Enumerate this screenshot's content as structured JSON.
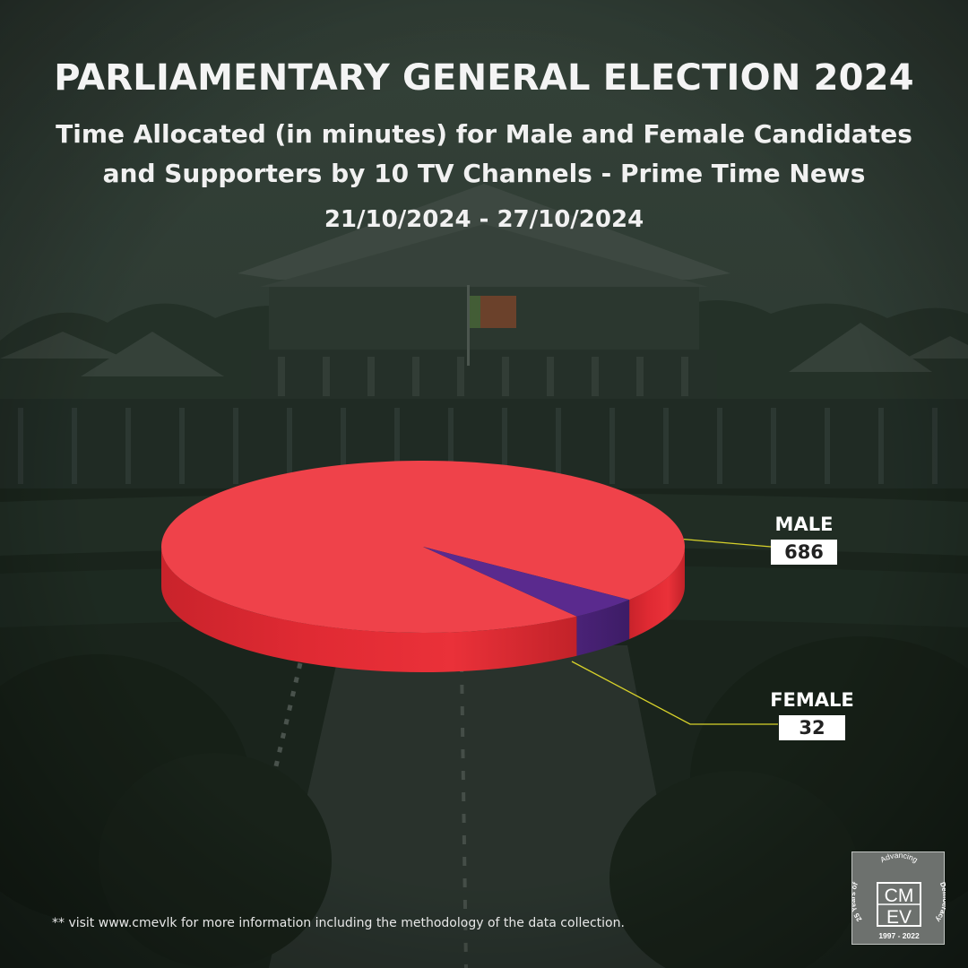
{
  "header": {
    "title": "PARLIAMENTARY GENERAL ELECTION 2024",
    "subtitle_line1": "Time Allocated (in minutes) for Male and Female Candidates",
    "subtitle_line2": "and Supporters by 10 TV Channels - Prime Time News",
    "date_range": "21/10/2024 - 27/10/2024"
  },
  "chart_data": {
    "type": "pie",
    "title": "",
    "slices": [
      {
        "label": "MALE",
        "value": 686,
        "color": "#ef424a"
      },
      {
        "label": "FEMALE",
        "value": 32,
        "color": "#5a2a8e"
      }
    ],
    "leader_color": "#d8d22a",
    "style": "3d"
  },
  "footer": {
    "note": "** visit www.cmevlk for more information including the methodology of the data collection."
  },
  "logo": {
    "arc_left": "25 Years of",
    "arc_top": "Advancing",
    "arc_right": "Democracy",
    "letters_top": "CM",
    "letters_bottom": "EV",
    "years": "1997 - 2022"
  },
  "colors": {
    "background": "#2f3d33",
    "text": "#f4f4f4",
    "male": "#ef424a",
    "female": "#5a2a8e"
  }
}
